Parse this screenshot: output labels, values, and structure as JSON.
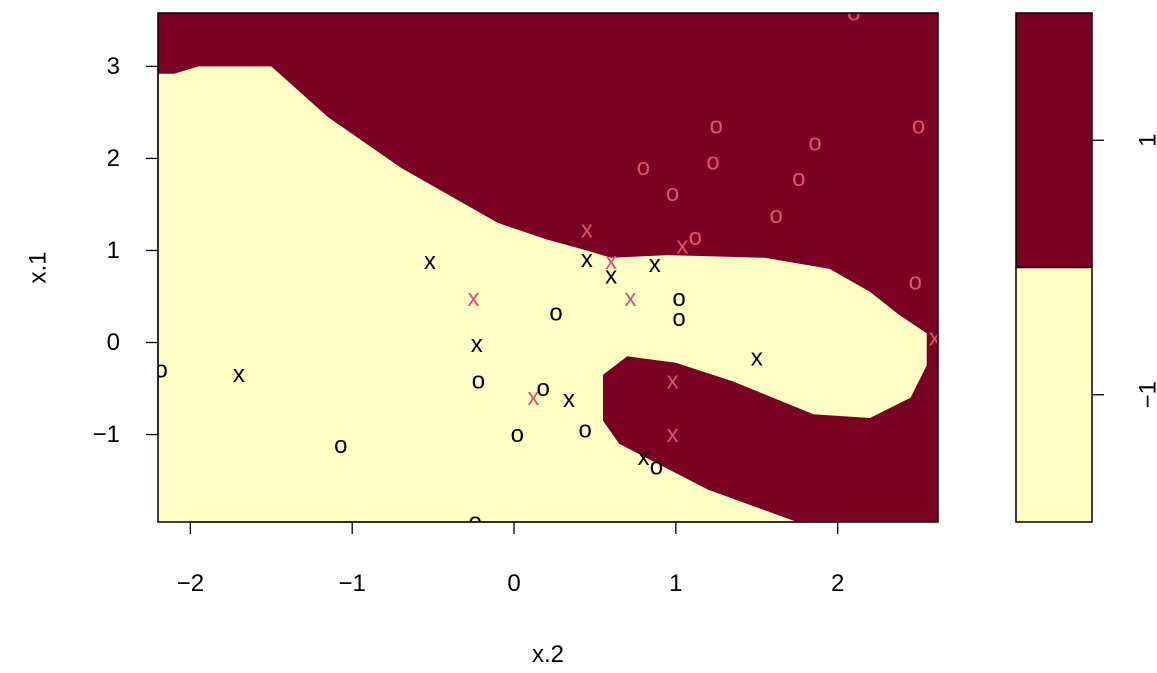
{
  "chart_data": {
    "type": "scatter",
    "subtype": "svm-classification-plot",
    "title": "",
    "xlabel": "x.2",
    "ylabel": "x.1",
    "xlim": [
      -2.2,
      2.62
    ],
    "ylim": [
      -1.95,
      3.58
    ],
    "xticks": [
      {
        "v": -2,
        "label": "−2"
      },
      {
        "v": -1,
        "label": "−1"
      },
      {
        "v": 0,
        "label": "0"
      },
      {
        "v": 1,
        "label": "1"
      },
      {
        "v": 2,
        "label": "2"
      }
    ],
    "yticks": [
      {
        "v": -1,
        "label": "−1"
      },
      {
        "v": 0,
        "label": "0"
      },
      {
        "v": 1,
        "label": "1"
      },
      {
        "v": 2,
        "label": "2"
      },
      {
        "v": 3,
        "label": "3"
      }
    ],
    "regions": {
      "positive_color": "#7A0024",
      "negative_color": "#FFFFC6",
      "background_class": "1",
      "negative_class_region": [
        [
          -2.2,
          -1.95
        ],
        [
          1.75,
          -1.95
        ],
        [
          1.2,
          -1.6
        ],
        [
          0.65,
          -1.1
        ],
        [
          0.55,
          -0.85
        ],
        [
          0.55,
          -0.35
        ],
        [
          0.7,
          -0.15
        ],
        [
          1.0,
          -0.22
        ],
        [
          1.35,
          -0.42
        ],
        [
          1.85,
          -0.78
        ],
        [
          2.2,
          -0.82
        ],
        [
          2.45,
          -0.6
        ],
        [
          2.55,
          -0.25
        ],
        [
          2.55,
          0.1
        ],
        [
          2.38,
          0.3
        ],
        [
          2.2,
          0.55
        ],
        [
          1.95,
          0.8
        ],
        [
          1.55,
          0.92
        ],
        [
          0.95,
          0.95
        ],
        [
          0.6,
          0.92
        ],
        [
          0.45,
          1.0
        ],
        [
          0.2,
          1.12
        ],
        [
          -0.1,
          1.3
        ],
        [
          -0.25,
          1.45
        ],
        [
          -0.7,
          1.9
        ],
        [
          -1.15,
          2.45
        ],
        [
          -1.5,
          3.0
        ],
        [
          -1.95,
          3.0
        ],
        [
          -2.1,
          2.92
        ],
        [
          -2.2,
          2.92
        ]
      ]
    },
    "points": [
      {
        "x": -0.52,
        "y": 0.88,
        "label": "x",
        "support": false
      },
      {
        "x": -0.25,
        "y": 0.48,
        "label": "x",
        "support": true
      },
      {
        "x": -0.23,
        "y": -0.02,
        "label": "x",
        "support": false
      },
      {
        "x": -1.7,
        "y": -0.35,
        "label": "x",
        "support": false
      },
      {
        "x": 0.45,
        "y": 0.9,
        "label": "x",
        "support": false
      },
      {
        "x": 0.45,
        "y": 1.22,
        "label": "x",
        "support": true
      },
      {
        "x": 0.6,
        "y": 0.88,
        "label": "x",
        "support": true
      },
      {
        "x": 0.6,
        "y": 0.72,
        "label": "x",
        "support": false
      },
      {
        "x": 0.72,
        "y": 0.48,
        "label": "x",
        "support": true
      },
      {
        "x": 0.87,
        "y": 0.85,
        "label": "x",
        "support": false
      },
      {
        "x": 1.04,
        "y": 1.05,
        "label": "x",
        "support": true
      },
      {
        "x": 0.12,
        "y": -0.6,
        "label": "x",
        "support": true
      },
      {
        "x": 0.34,
        "y": -0.62,
        "label": "x",
        "support": false
      },
      {
        "x": 0.8,
        "y": -1.25,
        "label": "x",
        "support": false
      },
      {
        "x": 0.98,
        "y": -0.42,
        "label": "x",
        "support": true
      },
      {
        "x": 0.98,
        "y": -1.0,
        "label": "x",
        "support": true
      },
      {
        "x": 1.5,
        "y": -0.17,
        "label": "x",
        "support": false
      },
      {
        "x": 2.6,
        "y": 0.05,
        "label": "x",
        "support": true
      },
      {
        "x": -2.18,
        "y": -0.3,
        "label": "o",
        "support": false
      },
      {
        "x": -1.07,
        "y": -1.12,
        "label": "o",
        "support": false
      },
      {
        "x": -0.22,
        "y": -0.42,
        "label": "o",
        "support": false
      },
      {
        "x": -0.24,
        "y": -1.95,
        "label": "o",
        "support": false
      },
      {
        "x": 0.26,
        "y": 0.32,
        "label": "o",
        "support": false
      },
      {
        "x": 0.18,
        "y": -0.5,
        "label": "o",
        "support": false
      },
      {
        "x": 0.02,
        "y": -1.0,
        "label": "o",
        "support": false
      },
      {
        "x": 0.44,
        "y": -0.95,
        "label": "o",
        "support": false
      },
      {
        "x": 0.88,
        "y": -1.35,
        "label": "o",
        "support": false
      },
      {
        "x": 1.02,
        "y": 0.48,
        "label": "o",
        "support": false
      },
      {
        "x": 1.02,
        "y": 0.26,
        "label": "o",
        "support": false
      },
      {
        "x": 0.8,
        "y": 1.9,
        "label": "o",
        "support": true
      },
      {
        "x": 0.98,
        "y": 1.62,
        "label": "o",
        "support": true
      },
      {
        "x": 1.12,
        "y": 1.14,
        "label": "o",
        "support": true
      },
      {
        "x": 1.23,
        "y": 1.96,
        "label": "o",
        "support": true
      },
      {
        "x": 1.25,
        "y": 2.35,
        "label": "o",
        "support": true
      },
      {
        "x": 1.62,
        "y": 1.38,
        "label": "o",
        "support": true
      },
      {
        "x": 1.76,
        "y": 1.78,
        "label": "o",
        "support": true
      },
      {
        "x": 1.86,
        "y": 2.17,
        "label": "o",
        "support": true
      },
      {
        "x": 2.1,
        "y": 3.58,
        "label": "o",
        "support": true
      },
      {
        "x": 2.48,
        "y": 0.66,
        "label": "o",
        "support": true
      },
      {
        "x": 2.5,
        "y": 2.35,
        "label": "o",
        "support": true
      }
    ],
    "point_colors": {
      "support": "#DF536B",
      "normal": "#000000"
    },
    "legend": {
      "type": "colorbar",
      "placement": "right",
      "labels": [
        "1",
        "−1"
      ],
      "colors": [
        "#7A0024",
        "#FFFFC6"
      ]
    }
  }
}
